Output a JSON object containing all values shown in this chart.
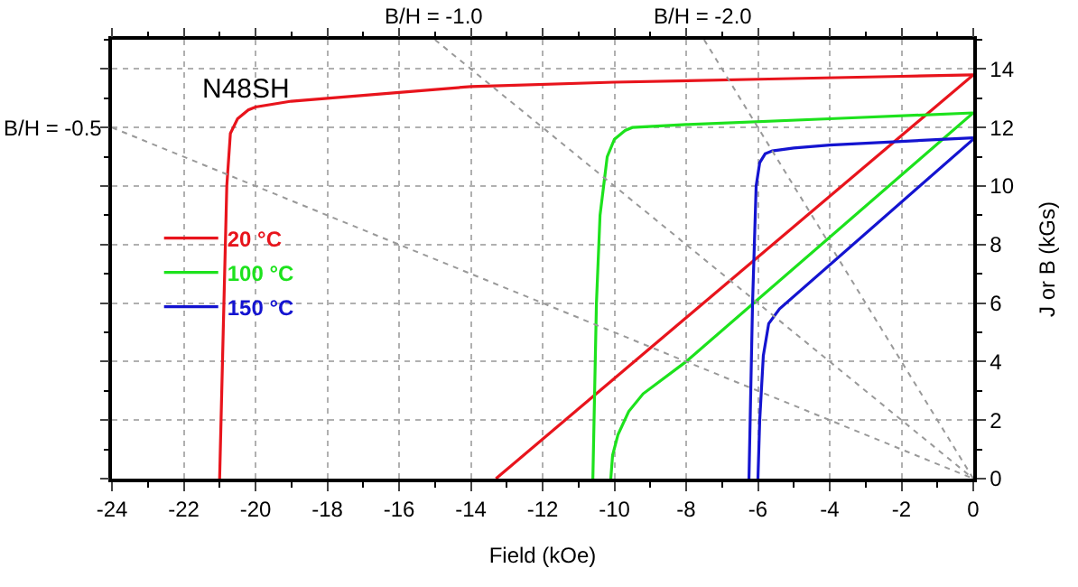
{
  "chart_data": {
    "type": "line",
    "xlabel": "Field (kOe)",
    "ylabel": "J or B (kGs)",
    "xlim": [
      -24,
      0
    ],
    "xticks": [
      -24,
      -22,
      -20,
      -18,
      -16,
      -14,
      -12,
      -10,
      -8,
      -6,
      -4,
      -2,
      0
    ],
    "ylim": [
      0,
      15
    ],
    "yticks": [
      0,
      2,
      4,
      6,
      8,
      10,
      12,
      14
    ],
    "grid": true,
    "legend": "left",
    "marker": "none",
    "line_style": "solid",
    "series": [
      {
        "name": "20 °C",
        "color": "#e8141c",
        "x": [
          -21.0,
          -20.9,
          -20.8,
          -20.7,
          -20.5,
          -20.2,
          -20.0,
          -19,
          -18,
          -16,
          -14,
          -10,
          -6,
          -2,
          0
        ],
        "values": [
          0,
          5,
          10,
          11.8,
          12.3,
          12.6,
          12.7,
          12.9,
          13.0,
          13.2,
          13.4,
          13.55,
          13.65,
          13.75,
          13.8
        ]
      },
      {
        "color": "#e8141c",
        "x": [
          -13.3,
          0
        ],
        "values": [
          0,
          13.8
        ]
      },
      {
        "name": "100 °C",
        "color": "#1de21d",
        "x": [
          -10.6,
          -10.5,
          -10.4,
          -10.3,
          -10.2,
          -10.0,
          -9.7,
          -9.5,
          -8,
          -4,
          0
        ],
        "values": [
          0,
          6,
          9,
          10,
          11,
          11.6,
          11.9,
          12.0,
          12.1,
          12.3,
          12.5
        ]
      },
      {
        "color": "#1de21d",
        "x": [
          -10.1,
          -10.05,
          -9.9,
          -9.6,
          -9.2,
          -8,
          0
        ],
        "values": [
          0,
          0.8,
          1.5,
          2.3,
          2.9,
          4.0,
          12.5
        ]
      },
      {
        "name": "150 °C",
        "color": "#1414d0",
        "x": [
          -6.25,
          -6.15,
          -6.05,
          -5.95,
          -5.8,
          -5.6,
          -5.0,
          -4,
          0
        ],
        "values": [
          0,
          6,
          10,
          10.8,
          11.1,
          11.2,
          11.3,
          11.4,
          11.65
        ]
      },
      {
        "color": "#1414d0",
        "x": [
          -6.0,
          -5.95,
          -5.85,
          -5.7,
          -5.4,
          0
        ],
        "values": [
          0,
          2,
          4.2,
          5.3,
          5.8,
          11.6
        ]
      },
      {
        "color": "#999999",
        "line_style": "dotted",
        "x": [
          -24,
          0
        ],
        "values": [
          12,
          0
        ]
      },
      {
        "color": "#999999",
        "line_style": "dotted",
        "x": [
          -15,
          0
        ],
        "values": [
          15,
          0
        ]
      },
      {
        "color": "#999999",
        "line_style": "dotted",
        "x": [
          -7.5,
          0
        ],
        "values": [
          15,
          0
        ]
      }
    ],
    "annotations": [
      "N48SH",
      {
        "text": "B/H = -0.5",
        "x": -24,
        "y": 12
      },
      {
        "text": "B/H = -1.0",
        "x": -15,
        "y": 15
      },
      {
        "text": "B/H = -2.0",
        "x": -7.5,
        "y": 15
      }
    ]
  }
}
